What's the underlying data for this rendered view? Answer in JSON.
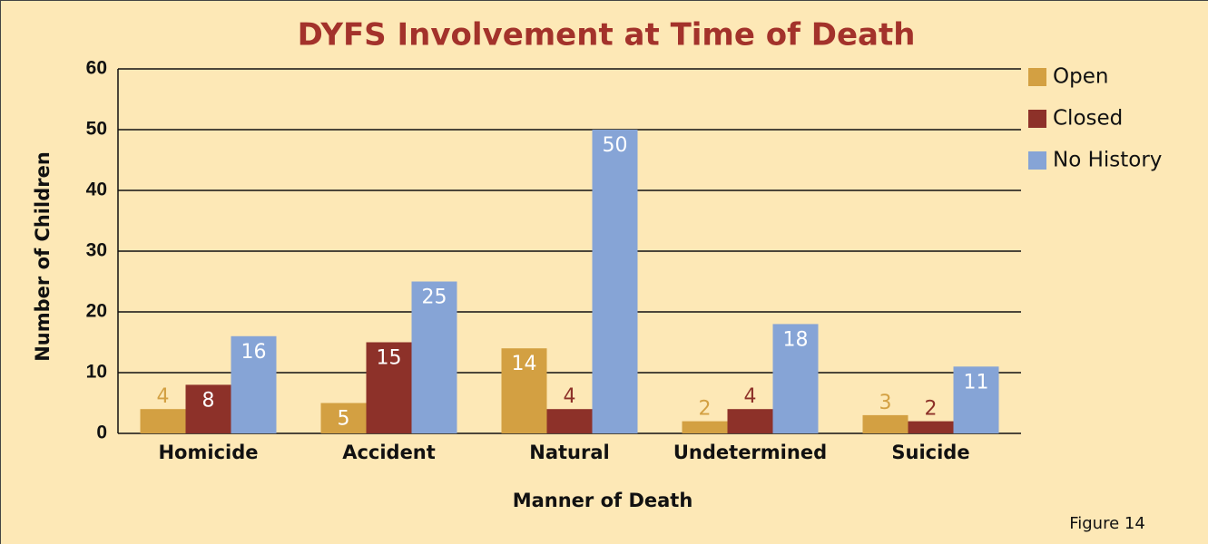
{
  "chart_data": {
    "type": "bar",
    "title": "DYFS Involvement at Time of Death",
    "x_label": "Manner of Death",
    "y_label": "Number of Children",
    "figure_label": "Figure 14",
    "categories": [
      "Homicide",
      "Accident",
      "Natural",
      "Undetermined",
      "Suicide"
    ],
    "series": [
      {
        "name": "Open",
        "color": "#d3a042",
        "values": [
          4,
          5,
          14,
          2,
          3
        ]
      },
      {
        "name": "Closed",
        "color": "#8d3129",
        "values": [
          8,
          15,
          4,
          4,
          2
        ]
      },
      {
        "name": "No History",
        "color": "#86a4d6",
        "values": [
          16,
          25,
          50,
          18,
          11
        ]
      }
    ],
    "ylim": [
      0,
      60
    ],
    "yticks": [
      0,
      10,
      20,
      30,
      40,
      50,
      60
    ],
    "grid": true,
    "legend": "top-right"
  }
}
